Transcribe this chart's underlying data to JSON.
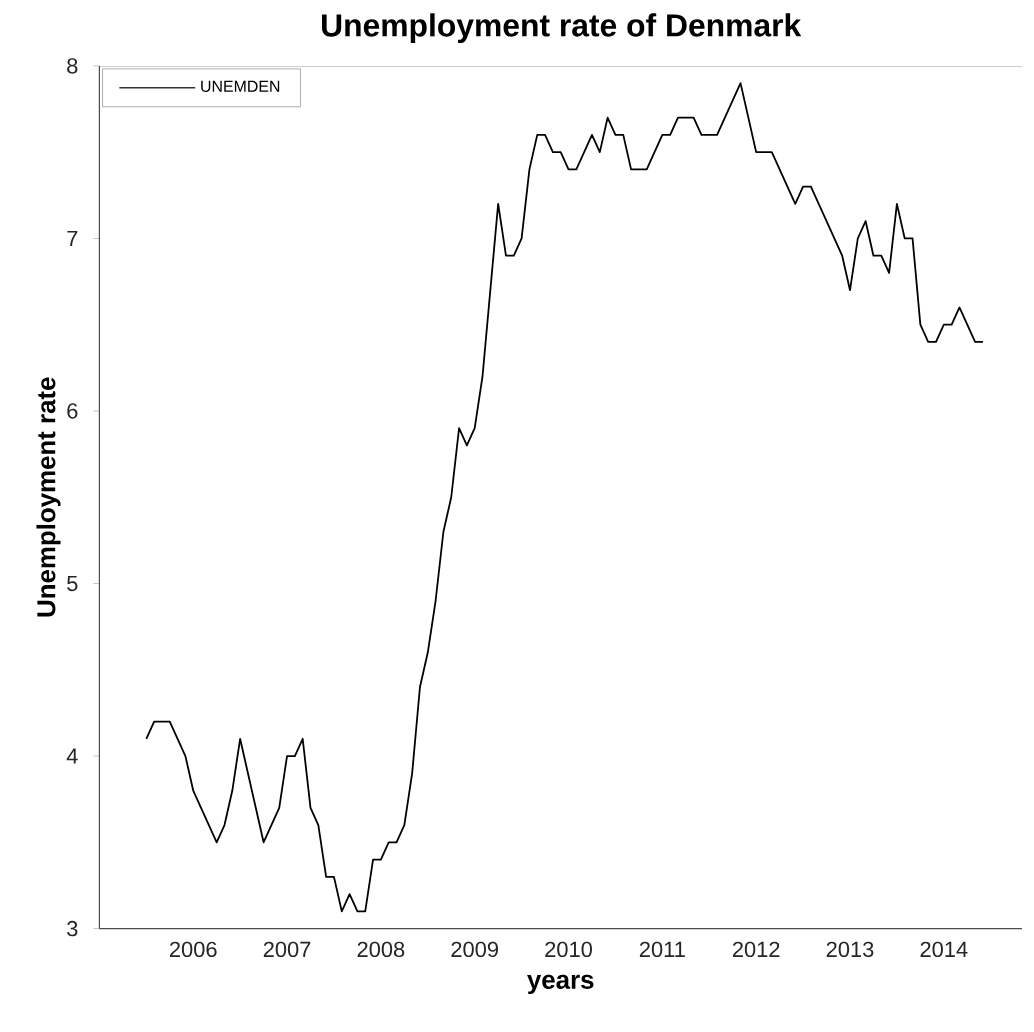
{
  "chart_data": {
    "type": "line",
    "title": "Unemployment rate of Denmark",
    "xlabel": "years",
    "ylabel": "Unemployment rate",
    "x": [
      "2006-01",
      "2006-02",
      "2006-03",
      "2006-04",
      "2006-05",
      "2006-06",
      "2006-07",
      "2006-08",
      "2006-09",
      "2006-10",
      "2006-11",
      "2006-12",
      "2007-01",
      "2007-02",
      "2007-03",
      "2007-04",
      "2007-05",
      "2007-06",
      "2007-07",
      "2007-08",
      "2007-09",
      "2007-10",
      "2007-11",
      "2007-12",
      "2008-01",
      "2008-02",
      "2008-03",
      "2008-04",
      "2008-05",
      "2008-06",
      "2008-07",
      "2008-08",
      "2008-09",
      "2008-10",
      "2008-11",
      "2008-12",
      "2009-01",
      "2009-02",
      "2009-03",
      "2009-04",
      "2009-05",
      "2009-06",
      "2009-07",
      "2009-08",
      "2009-09",
      "2009-10",
      "2009-11",
      "2009-12",
      "2010-01",
      "2010-02",
      "2010-03",
      "2010-04",
      "2010-05",
      "2010-06",
      "2010-07",
      "2010-08",
      "2010-09",
      "2010-10",
      "2010-11",
      "2010-12",
      "2011-01",
      "2011-02",
      "2011-03",
      "2011-04",
      "2011-05",
      "2011-06",
      "2011-07",
      "2011-08",
      "2011-09",
      "2011-10",
      "2011-11",
      "2011-12",
      "2012-01",
      "2012-02",
      "2012-03",
      "2012-04",
      "2012-05",
      "2012-06",
      "2012-07",
      "2012-08",
      "2012-09",
      "2012-10",
      "2012-11",
      "2012-12",
      "2013-01",
      "2013-02",
      "2013-03",
      "2013-04",
      "2013-05",
      "2013-06",
      "2013-07",
      "2013-08",
      "2013-09",
      "2013-10",
      "2013-11",
      "2013-12",
      "2014-01",
      "2014-02",
      "2014-03",
      "2014-04",
      "2014-05",
      "2014-06",
      "2014-07",
      "2014-08",
      "2014-09",
      "2014-10",
      "2014-11",
      "2014-12"
    ],
    "series": [
      {
        "name": "UNEMDEN",
        "color": "#000000",
        "values": [
          4.1,
          4.2,
          4.2,
          4.2,
          4.1,
          4.0,
          3.8,
          3.7,
          3.6,
          3.5,
          3.6,
          3.8,
          4.1,
          3.9,
          3.7,
          3.5,
          3.6,
          3.7,
          4.0,
          4.0,
          4.1,
          3.7,
          3.6,
          3.3,
          3.3,
          3.1,
          3.2,
          3.1,
          3.1,
          3.4,
          3.4,
          3.5,
          3.5,
          3.6,
          3.9,
          4.4,
          4.6,
          4.9,
          5.3,
          5.5,
          5.9,
          5.8,
          5.9,
          6.2,
          6.7,
          7.2,
          6.9,
          6.9,
          7.0,
          7.4,
          7.6,
          7.6,
          7.5,
          7.5,
          7.4,
          7.4,
          7.5,
          7.6,
          7.5,
          7.7,
          7.6,
          7.6,
          7.4,
          7.4,
          7.4,
          7.5,
          7.6,
          7.6,
          7.7,
          7.7,
          7.7,
          7.6,
          7.6,
          7.6,
          7.7,
          7.8,
          7.9,
          7.7,
          7.5,
          7.5,
          7.5,
          7.4,
          7.3,
          7.2,
          7.3,
          7.3,
          7.2,
          7.1,
          7.0,
          6.9,
          6.7,
          7.0,
          7.1,
          6.9,
          6.9,
          6.8,
          7.2,
          7.0,
          7.0,
          6.5,
          6.4,
          6.4,
          6.5,
          6.5,
          6.6,
          6.5,
          6.4,
          6.4
        ]
      }
    ],
    "xlim": [
      "2005-07",
      "2015-05"
    ],
    "xticks": [
      {
        "value": "2006-07",
        "label": "2006"
      },
      {
        "value": "2007-07",
        "label": "2007"
      },
      {
        "value": "2008-07",
        "label": "2008"
      },
      {
        "value": "2009-07",
        "label": "2009"
      },
      {
        "value": "2010-07",
        "label": "2010"
      },
      {
        "value": "2011-07",
        "label": "2011"
      },
      {
        "value": "2012-07",
        "label": "2012"
      },
      {
        "value": "2013-07",
        "label": "2013"
      },
      {
        "value": "2014-07",
        "label": "2014"
      }
    ],
    "ylim": [
      3,
      8
    ],
    "yticks": [
      3,
      4,
      5,
      6,
      7,
      8
    ],
    "grid": false,
    "legend": "top left",
    "marker": "none",
    "line_style": "solid"
  }
}
